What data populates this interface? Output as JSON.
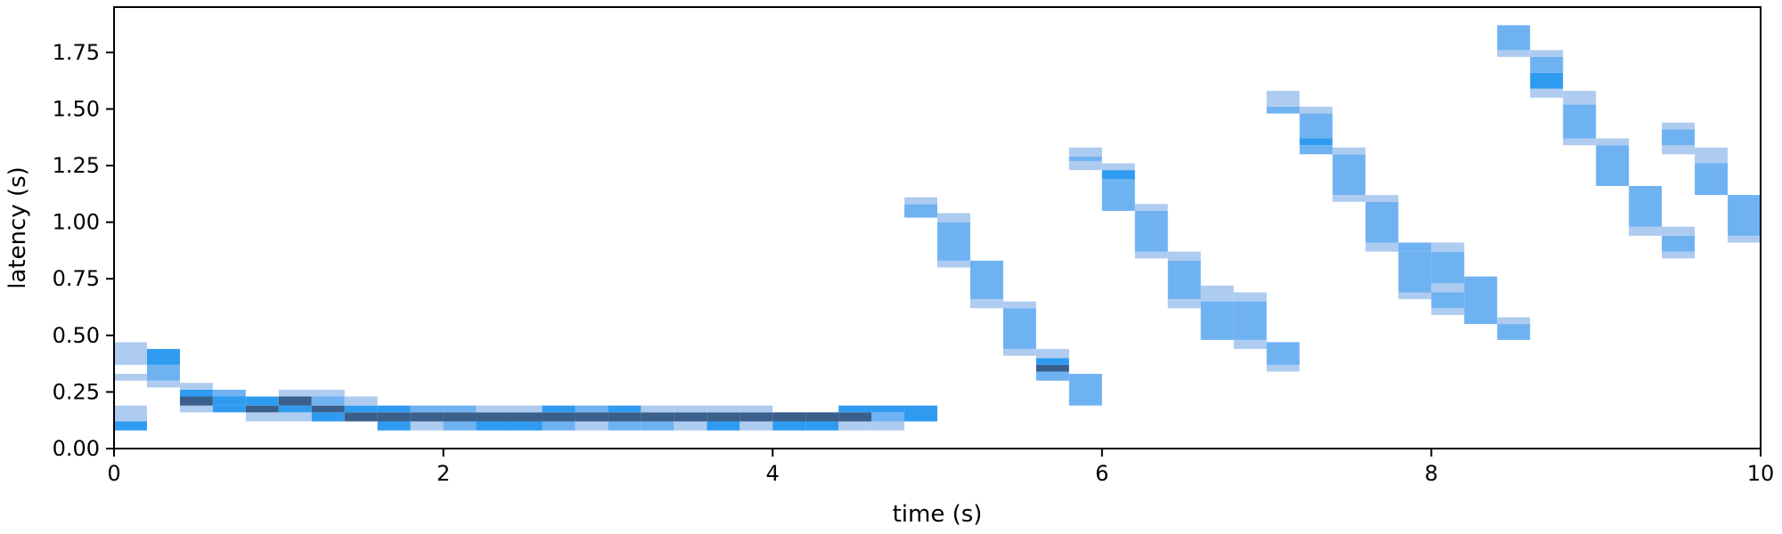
{
  "chart_data": {
    "type": "heatmap",
    "title": "",
    "xlabel": "time (s)",
    "ylabel": "latency (s)",
    "xlim": [
      0,
      10
    ],
    "ylim": [
      0,
      1.95
    ],
    "x_ticks": [
      0,
      2,
      4,
      6,
      8,
      10
    ],
    "y_ticks": [
      0.0,
      0.25,
      0.5,
      0.75,
      1.0,
      1.25,
      1.5,
      1.75
    ],
    "x_tick_labels": [
      "0",
      "2",
      "4",
      "6",
      "8",
      "10"
    ],
    "y_tick_labels": [
      "0.00",
      "0.25",
      "0.50",
      "0.75",
      "1.00",
      "1.25",
      "1.50",
      "1.75"
    ],
    "bin_width_s": 0.2,
    "color_scale": {
      "light": "#aecbf0",
      "mid": "#6fb2f2",
      "strong": "#2f9bf0",
      "dark": "#3a5f8a"
    },
    "columns": [
      {
        "x0": 0.0,
        "cells": [
          [
            0.08,
            0.12,
            "strong"
          ],
          [
            0.12,
            0.19,
            "light"
          ],
          [
            0.3,
            0.33,
            "light"
          ],
          [
            0.37,
            0.42,
            "light"
          ],
          [
            0.42,
            0.47,
            "light"
          ]
        ]
      },
      {
        "x0": 0.2,
        "cells": [
          [
            0.27,
            0.3,
            "light"
          ],
          [
            0.3,
            0.37,
            "mid"
          ],
          [
            0.37,
            0.44,
            "strong"
          ]
        ]
      },
      {
        "x0": 0.4,
        "cells": [
          [
            0.16,
            0.19,
            "light"
          ],
          [
            0.19,
            0.23,
            "dark"
          ],
          [
            0.23,
            0.26,
            "strong"
          ],
          [
            0.26,
            0.29,
            "light"
          ]
        ]
      },
      {
        "x0": 0.6,
        "cells": [
          [
            0.16,
            0.19,
            "strong"
          ],
          [
            0.19,
            0.23,
            "strong"
          ],
          [
            0.23,
            0.26,
            "mid"
          ]
        ]
      },
      {
        "x0": 0.8,
        "cells": [
          [
            0.12,
            0.16,
            "light"
          ],
          [
            0.16,
            0.19,
            "dark"
          ],
          [
            0.19,
            0.23,
            "strong"
          ]
        ]
      },
      {
        "x0": 1.0,
        "cells": [
          [
            0.12,
            0.16,
            "light"
          ],
          [
            0.16,
            0.19,
            "strong"
          ],
          [
            0.19,
            0.23,
            "dark"
          ],
          [
            0.23,
            0.26,
            "light"
          ]
        ]
      },
      {
        "x0": 1.2,
        "cells": [
          [
            0.12,
            0.16,
            "strong"
          ],
          [
            0.16,
            0.19,
            "dark"
          ],
          [
            0.19,
            0.23,
            "mid"
          ],
          [
            0.23,
            0.26,
            "light"
          ]
        ]
      },
      {
        "x0": 1.4,
        "cells": [
          [
            0.12,
            0.16,
            "dark"
          ],
          [
            0.16,
            0.19,
            "strong"
          ],
          [
            0.19,
            0.23,
            "light"
          ]
        ]
      },
      {
        "x0": 1.6,
        "cells": [
          [
            0.08,
            0.12,
            "strong"
          ],
          [
            0.12,
            0.16,
            "dark"
          ],
          [
            0.16,
            0.19,
            "strong"
          ]
        ]
      },
      {
        "x0": 1.8,
        "cells": [
          [
            0.08,
            0.12,
            "light"
          ],
          [
            0.12,
            0.16,
            "dark"
          ],
          [
            0.16,
            0.19,
            "mid"
          ]
        ]
      },
      {
        "x0": 2.0,
        "cells": [
          [
            0.08,
            0.12,
            "mid"
          ],
          [
            0.12,
            0.16,
            "dark"
          ],
          [
            0.16,
            0.19,
            "mid"
          ]
        ]
      },
      {
        "x0": 2.2,
        "cells": [
          [
            0.08,
            0.12,
            "strong"
          ],
          [
            0.12,
            0.16,
            "dark"
          ],
          [
            0.16,
            0.19,
            "light"
          ]
        ]
      },
      {
        "x0": 2.4,
        "cells": [
          [
            0.08,
            0.12,
            "strong"
          ],
          [
            0.12,
            0.16,
            "dark"
          ],
          [
            0.16,
            0.19,
            "light"
          ]
        ]
      },
      {
        "x0": 2.6,
        "cells": [
          [
            0.08,
            0.12,
            "mid"
          ],
          [
            0.12,
            0.16,
            "dark"
          ],
          [
            0.16,
            0.19,
            "strong"
          ]
        ]
      },
      {
        "x0": 2.8,
        "cells": [
          [
            0.08,
            0.12,
            "light"
          ],
          [
            0.12,
            0.16,
            "dark"
          ],
          [
            0.16,
            0.19,
            "mid"
          ]
        ]
      },
      {
        "x0": 3.0,
        "cells": [
          [
            0.08,
            0.12,
            "mid"
          ],
          [
            0.12,
            0.16,
            "dark"
          ],
          [
            0.16,
            0.19,
            "strong"
          ]
        ]
      },
      {
        "x0": 3.2,
        "cells": [
          [
            0.08,
            0.12,
            "mid"
          ],
          [
            0.12,
            0.16,
            "dark"
          ],
          [
            0.16,
            0.19,
            "light"
          ]
        ]
      },
      {
        "x0": 3.4,
        "cells": [
          [
            0.08,
            0.12,
            "light"
          ],
          [
            0.12,
            0.16,
            "dark"
          ],
          [
            0.16,
            0.19,
            "light"
          ]
        ]
      },
      {
        "x0": 3.6,
        "cells": [
          [
            0.08,
            0.12,
            "strong"
          ],
          [
            0.12,
            0.16,
            "dark"
          ],
          [
            0.16,
            0.19,
            "light"
          ]
        ]
      },
      {
        "x0": 3.8,
        "cells": [
          [
            0.08,
            0.12,
            "light"
          ],
          [
            0.12,
            0.16,
            "dark"
          ],
          [
            0.16,
            0.19,
            "light"
          ]
        ]
      },
      {
        "x0": 4.0,
        "cells": [
          [
            0.08,
            0.12,
            "strong"
          ],
          [
            0.12,
            0.16,
            "dark"
          ]
        ]
      },
      {
        "x0": 4.2,
        "cells": [
          [
            0.08,
            0.12,
            "strong"
          ],
          [
            0.12,
            0.16,
            "dark"
          ]
        ]
      },
      {
        "x0": 4.4,
        "cells": [
          [
            0.08,
            0.12,
            "light"
          ],
          [
            0.12,
            0.16,
            "dark"
          ],
          [
            0.16,
            0.19,
            "strong"
          ]
        ]
      },
      {
        "x0": 4.6,
        "cells": [
          [
            0.08,
            0.12,
            "light"
          ],
          [
            0.12,
            0.16,
            "mid"
          ],
          [
            0.16,
            0.19,
            "strong"
          ]
        ]
      },
      {
        "x0": 4.8,
        "cells": [
          [
            0.12,
            0.19,
            "strong"
          ]
        ]
      },
      {
        "x0": 4.8,
        "cells": [
          [
            1.02,
            1.08,
            "mid"
          ],
          [
            1.08,
            1.11,
            "light"
          ]
        ]
      },
      {
        "x0": 5.0,
        "cells": [
          [
            0.8,
            0.83,
            "light"
          ],
          [
            0.83,
            1.0,
            "mid"
          ],
          [
            1.0,
            1.04,
            "light"
          ]
        ]
      },
      {
        "x0": 5.2,
        "cells": [
          [
            0.62,
            0.66,
            "light"
          ],
          [
            0.66,
            0.83,
            "mid"
          ]
        ]
      },
      {
        "x0": 5.4,
        "cells": [
          [
            0.41,
            0.44,
            "light"
          ],
          [
            0.44,
            0.62,
            "mid"
          ],
          [
            0.62,
            0.65,
            "light"
          ]
        ]
      },
      {
        "x0": 5.6,
        "cells": [
          [
            0.3,
            0.34,
            "mid"
          ],
          [
            0.34,
            0.37,
            "dark"
          ],
          [
            0.37,
            0.4,
            "strong"
          ],
          [
            0.4,
            0.44,
            "light"
          ]
        ]
      },
      {
        "x0": 5.8,
        "cells": [
          [
            0.19,
            0.33,
            "mid"
          ]
        ]
      },
      {
        "x0": 5.8,
        "cells": [
          [
            1.23,
            1.27,
            "light"
          ],
          [
            1.27,
            1.29,
            "mid"
          ],
          [
            1.29,
            1.33,
            "light"
          ]
        ]
      },
      {
        "x0": 6.0,
        "cells": [
          [
            1.05,
            1.19,
            "mid"
          ],
          [
            1.19,
            1.23,
            "strong"
          ],
          [
            1.23,
            1.26,
            "light"
          ]
        ]
      },
      {
        "x0": 6.2,
        "cells": [
          [
            0.84,
            0.87,
            "light"
          ],
          [
            0.87,
            1.05,
            "mid"
          ],
          [
            1.05,
            1.08,
            "light"
          ]
        ]
      },
      {
        "x0": 6.4,
        "cells": [
          [
            0.62,
            0.66,
            "light"
          ],
          [
            0.66,
            0.83,
            "mid"
          ],
          [
            0.83,
            0.87,
            "light"
          ]
        ]
      },
      {
        "x0": 6.6,
        "cells": [
          [
            0.48,
            0.65,
            "mid"
          ],
          [
            0.65,
            0.72,
            "light"
          ]
        ]
      },
      {
        "x0": 6.8,
        "cells": [
          [
            0.44,
            0.48,
            "light"
          ],
          [
            0.48,
            0.65,
            "mid"
          ],
          [
            0.65,
            0.69,
            "light"
          ]
        ]
      },
      {
        "x0": 7.0,
        "cells": [
          [
            0.34,
            0.37,
            "light"
          ],
          [
            0.37,
            0.47,
            "mid"
          ]
        ]
      },
      {
        "x0": 7.0,
        "cells": [
          [
            1.48,
            1.51,
            "mid"
          ],
          [
            1.51,
            1.55,
            "light"
          ],
          [
            1.55,
            1.58,
            "light"
          ]
        ]
      },
      {
        "x0": 7.2,
        "cells": [
          [
            1.3,
            1.34,
            "mid"
          ],
          [
            1.34,
            1.37,
            "strong"
          ],
          [
            1.37,
            1.48,
            "mid"
          ],
          [
            1.48,
            1.51,
            "light"
          ]
        ]
      },
      {
        "x0": 7.4,
        "cells": [
          [
            1.09,
            1.12,
            "light"
          ],
          [
            1.12,
            1.3,
            "mid"
          ],
          [
            1.3,
            1.33,
            "light"
          ]
        ]
      },
      {
        "x0": 7.6,
        "cells": [
          [
            0.87,
            0.91,
            "light"
          ],
          [
            0.91,
            1.09,
            "mid"
          ],
          [
            1.09,
            1.12,
            "light"
          ]
        ]
      },
      {
        "x0": 7.8,
        "cells": [
          [
            0.66,
            0.69,
            "light"
          ],
          [
            0.69,
            0.87,
            "mid"
          ],
          [
            0.87,
            0.91,
            "mid"
          ]
        ]
      },
      {
        "x0": 8.0,
        "cells": [
          [
            0.59,
            0.62,
            "light"
          ],
          [
            0.62,
            0.69,
            "mid"
          ],
          [
            0.69,
            0.73,
            "light"
          ],
          [
            0.73,
            0.87,
            "mid"
          ],
          [
            0.87,
            0.91,
            "light"
          ]
        ]
      },
      {
        "x0": 8.2,
        "cells": [
          [
            0.55,
            0.76,
            "mid"
          ]
        ]
      },
      {
        "x0": 8.4,
        "cells": [
          [
            0.48,
            0.55,
            "mid"
          ],
          [
            0.55,
            0.58,
            "light"
          ]
        ]
      },
      {
        "x0": 8.4,
        "cells": [
          [
            1.73,
            1.76,
            "light"
          ],
          [
            1.76,
            1.87,
            "mid"
          ]
        ]
      },
      {
        "x0": 8.6,
        "cells": [
          [
            1.55,
            1.59,
            "light"
          ],
          [
            1.59,
            1.66,
            "strong"
          ],
          [
            1.66,
            1.73,
            "mid"
          ],
          [
            1.73,
            1.76,
            "light"
          ]
        ]
      },
      {
        "x0": 8.8,
        "cells": [
          [
            1.34,
            1.37,
            "light"
          ],
          [
            1.37,
            1.52,
            "mid"
          ],
          [
            1.52,
            1.55,
            "light"
          ],
          [
            1.55,
            1.58,
            "light"
          ]
        ]
      },
      {
        "x0": 9.0,
        "cells": [
          [
            1.16,
            1.34,
            "mid"
          ],
          [
            1.34,
            1.37,
            "light"
          ]
        ]
      },
      {
        "x0": 9.2,
        "cells": [
          [
            0.94,
            0.98,
            "light"
          ],
          [
            0.98,
            1.16,
            "mid"
          ]
        ]
      },
      {
        "x0": 9.4,
        "cells": [
          [
            0.84,
            0.87,
            "light"
          ],
          [
            0.87,
            0.94,
            "mid"
          ],
          [
            0.94,
            0.98,
            "light"
          ]
        ]
      },
      {
        "x0": 9.4,
        "cells": [
          [
            1.3,
            1.34,
            "light"
          ],
          [
            1.34,
            1.41,
            "mid"
          ],
          [
            1.41,
            1.44,
            "light"
          ]
        ]
      },
      {
        "x0": 9.6,
        "cells": [
          [
            1.12,
            1.26,
            "mid"
          ],
          [
            1.26,
            1.33,
            "light"
          ]
        ]
      },
      {
        "x0": 9.8,
        "cells": [
          [
            0.91,
            0.94,
            "light"
          ],
          [
            0.94,
            1.12,
            "mid"
          ]
        ]
      }
    ]
  }
}
